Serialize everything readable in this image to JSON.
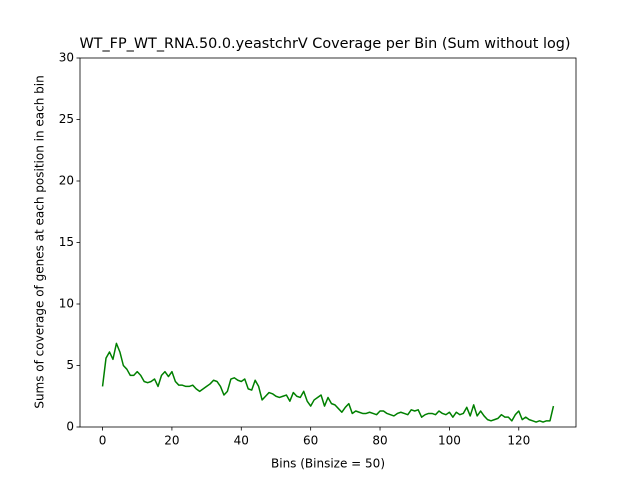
{
  "chart_data": {
    "type": "line",
    "title": "WT_FP_WT_RNA.50.0.yeastchrV Coverage per Bin (Sum without log)",
    "x_label": "Bins (Binsize = 50)",
    "y_label": "Sums of coverage of genes at each position in each bin",
    "color": "#008000",
    "x": [
      0,
      1,
      2,
      3,
      4,
      5,
      6,
      7,
      8,
      9,
      10,
      11,
      12,
      13,
      14,
      15,
      16,
      17,
      18,
      19,
      20,
      21,
      22,
      23,
      24,
      25,
      26,
      27,
      28,
      29,
      30,
      31,
      32,
      33,
      34,
      35,
      36,
      37,
      38,
      39,
      40,
      41,
      42,
      43,
      44,
      45,
      46,
      47,
      48,
      49,
      50,
      51,
      52,
      53,
      54,
      55,
      56,
      57,
      58,
      59,
      60,
      61,
      62,
      63,
      64,
      65,
      66,
      67,
      68,
      69,
      70,
      71,
      72,
      73,
      74,
      75,
      76,
      77,
      78,
      79,
      80,
      81,
      82,
      83,
      84,
      85,
      86,
      87,
      88,
      89,
      90,
      91,
      92,
      93,
      94,
      95,
      96,
      97,
      98,
      99,
      100,
      101,
      102,
      103,
      104,
      105,
      106,
      107,
      108,
      109,
      110,
      111,
      112,
      113,
      114,
      115,
      116,
      117,
      118,
      119,
      120,
      121,
      122,
      123,
      124,
      125,
      126,
      127,
      128,
      129,
      130
    ],
    "values": [
      3.3,
      5.6,
      6.1,
      5.5,
      6.8,
      6.1,
      5.0,
      4.7,
      4.2,
      4.2,
      4.5,
      4.2,
      3.7,
      3.6,
      3.7,
      3.9,
      3.3,
      4.2,
      4.5,
      4.1,
      4.5,
      3.7,
      3.4,
      3.4,
      3.3,
      3.3,
      3.4,
      3.1,
      2.9,
      3.1,
      3.3,
      3.5,
      3.8,
      3.7,
      3.3,
      2.6,
      2.9,
      3.9,
      4.0,
      3.8,
      3.7,
      3.9,
      3.1,
      3.0,
      3.8,
      3.3,
      2.2,
      2.5,
      2.8,
      2.7,
      2.5,
      2.4,
      2.5,
      2.6,
      2.1,
      2.8,
      2.5,
      2.4,
      2.9,
      2.1,
      1.7,
      2.2,
      2.4,
      2.6,
      1.7,
      2.4,
      1.9,
      1.8,
      1.5,
      1.2,
      1.6,
      1.9,
      1.1,
      1.3,
      1.2,
      1.1,
      1.1,
      1.2,
      1.1,
      1.0,
      1.3,
      1.3,
      1.1,
      1.0,
      0.9,
      1.1,
      1.2,
      1.1,
      1.0,
      1.4,
      1.3,
      1.4,
      0.8,
      1.0,
      1.1,
      1.1,
      1.0,
      1.3,
      1.1,
      1.0,
      1.2,
      0.8,
      1.2,
      1.0,
      1.1,
      1.6,
      0.9,
      1.8,
      0.9,
      1.3,
      0.9,
      0.6,
      0.5,
      0.6,
      0.7,
      1.0,
      0.8,
      0.8,
      0.5,
      1.0,
      1.3,
      0.6,
      0.8,
      0.6,
      0.5,
      0.4,
      0.5,
      0.4,
      0.5,
      0.5,
      1.7
    ],
    "xlim": [
      -6.5,
      136.5
    ],
    "ylim": [
      0,
      30
    ],
    "xticks": [
      0,
      20,
      40,
      60,
      80,
      100,
      120
    ],
    "yticks": [
      0,
      5,
      10,
      15,
      20,
      25,
      30
    ]
  }
}
